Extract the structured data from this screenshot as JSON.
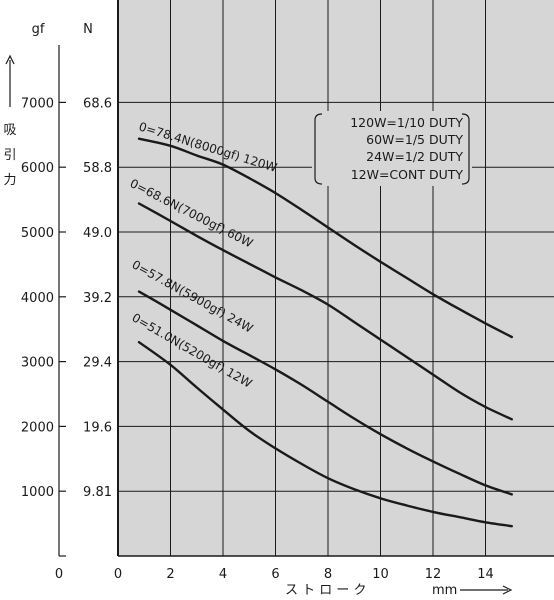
{
  "chart_data": {
    "type": "line",
    "x_unit_label": "mm",
    "xlabel": "ス ト ロ ー ク",
    "y_unit_gf": "gf",
    "y_unit_n": "N",
    "ylabel": "吸引力",
    "xlim": [
      0,
      16
    ],
    "ylim_gf": [
      0,
      8000
    ],
    "x_ticks": [
      0,
      2,
      4,
      6,
      8,
      10,
      12,
      14
    ],
    "y_ticks_gf": [
      "1000",
      "2000",
      "3000",
      "4000",
      "5000",
      "6000",
      "7000"
    ],
    "y_ticks_n": [
      "9.81",
      "19.6",
      "29.4",
      "39.2",
      "49.0",
      "58.8",
      "68.6"
    ],
    "outer_x_zero_label": "0",
    "grid": true,
    "series": [
      {
        "name": "120W",
        "label": "0=78.4N(8000gf) 120W",
        "x": [
          0.8,
          2,
          3,
          4,
          5,
          6,
          7,
          8,
          9,
          10,
          11,
          12,
          13,
          14,
          15
        ],
        "y": [
          6440,
          6330,
          6180,
          6040,
          5830,
          5600,
          5340,
          5070,
          4800,
          4540,
          4290,
          4040,
          3810,
          3590,
          3380
        ]
      },
      {
        "name": "60W",
        "label": "0=68.6N(7000gf) 60W",
        "x": [
          0.8,
          2,
          3,
          4,
          5,
          6,
          7,
          8,
          9,
          10,
          11,
          12,
          13,
          14,
          15
        ],
        "y": [
          5440,
          5170,
          4940,
          4720,
          4510,
          4300,
          4100,
          3880,
          3610,
          3340,
          3070,
          2800,
          2530,
          2300,
          2110
        ]
      },
      {
        "name": "24W",
        "label": "0=57.8N(5900gf) 24W",
        "x": [
          0.8,
          2,
          3,
          4,
          5,
          6,
          7,
          8,
          9,
          10,
          11,
          12,
          13,
          14,
          15
        ],
        "y": [
          4080,
          3800,
          3560,
          3320,
          3100,
          2880,
          2640,
          2380,
          2120,
          1880,
          1660,
          1460,
          1270,
          1090,
          950
        ]
      },
      {
        "name": "12W",
        "label": "0=51.0N(5200gf) 12W",
        "x": [
          0.8,
          2,
          3,
          4,
          5,
          6,
          7,
          8,
          9,
          10,
          11,
          12,
          13,
          14,
          15
        ],
        "y": [
          3300,
          2950,
          2600,
          2260,
          1930,
          1660,
          1420,
          1200,
          1030,
          890,
          780,
          680,
          600,
          520,
          460
        ]
      }
    ],
    "legend": {
      "placement": "top-right",
      "entries": [
        "120W=1/10 DUTY",
        "60W=1/5 DUTY",
        "24W=1/2 DUTY",
        "12W=CONT DUTY"
      ]
    }
  }
}
